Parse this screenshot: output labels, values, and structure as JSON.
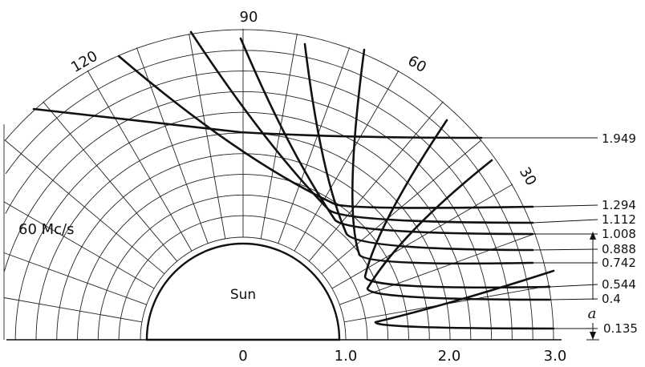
{
  "angle_labels": [
    "90",
    "120",
    "60",
    "30"
  ],
  "sun_label": "Sun",
  "frequency_label": "60 Mc/s",
  "radius_labels": [
    "0",
    "1.0",
    "2.0",
    "3.0"
  ],
  "ray_values": [
    "1.949",
    "1.294",
    "1.112",
    "1.008",
    "0.888",
    "0.742",
    "0.544",
    "0.4",
    "0.135"
  ],
  "a_label": "a"
}
